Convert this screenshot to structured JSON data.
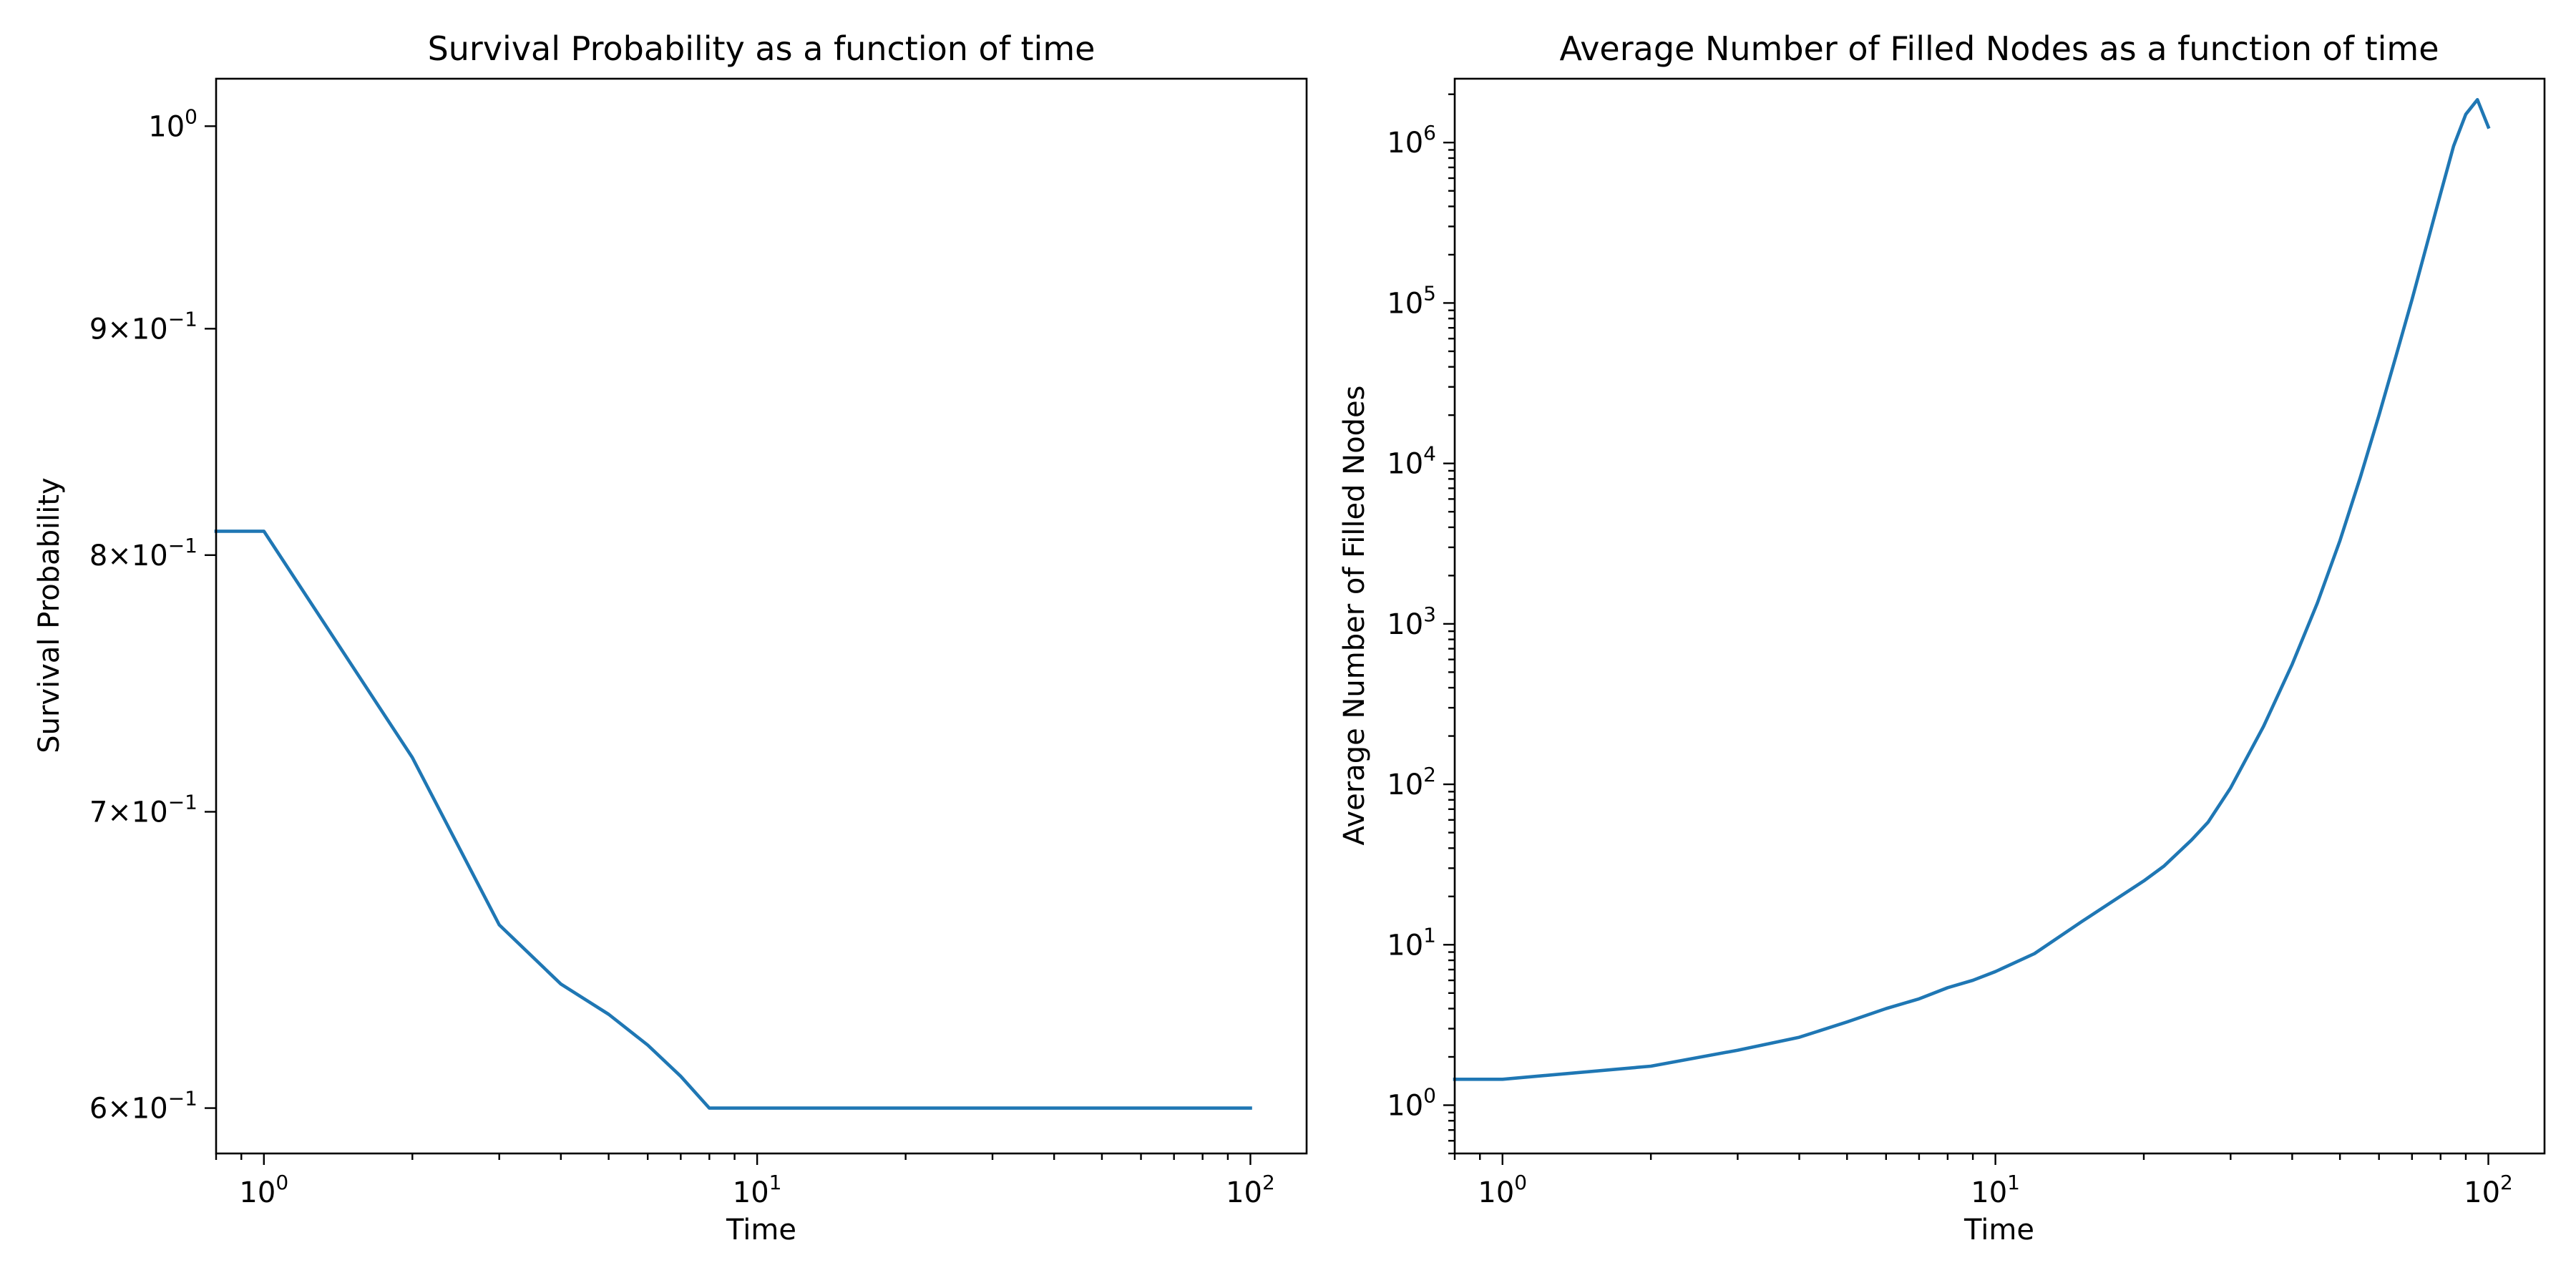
{
  "chart_data": [
    {
      "type": "line",
      "title": "Survival Probability as a function of time",
      "xlabel": "Time",
      "ylabel": "Survival Probability",
      "xscale": "log",
      "yscale": "log",
      "xlim": [
        0.8,
        130
      ],
      "ylim": [
        0.586,
        1.025
      ],
      "grid": false,
      "legend": "none",
      "x_major_ticks": [
        {
          "value": 1,
          "base": "10",
          "exp": "0"
        },
        {
          "value": 10,
          "base": "10",
          "exp": "1"
        },
        {
          "value": 100,
          "base": "10",
          "exp": "2"
        }
      ],
      "y_major_ticks": [
        {
          "value": 1.0,
          "coef": "",
          "base": "10",
          "exp": "0"
        },
        {
          "value": 0.9,
          "coef": "9",
          "base": "10",
          "exp": "−1"
        },
        {
          "value": 0.8,
          "coef": "8",
          "base": "10",
          "exp": "−1"
        },
        {
          "value": 0.7,
          "coef": "7",
          "base": "10",
          "exp": "−1"
        },
        {
          "value": 0.6,
          "coef": "6",
          "base": "10",
          "exp": "−1"
        }
      ],
      "series": [
        {
          "color": "#1f77b4",
          "x": [
            0.8,
            1,
            2,
            3,
            4,
            5,
            6,
            7,
            8,
            10,
            20,
            30,
            40,
            50,
            60,
            70,
            80,
            90,
            100
          ],
          "y": [
            0.81,
            0.81,
            0.72,
            0.66,
            0.64,
            0.63,
            0.62,
            0.61,
            0.6,
            0.6,
            0.6,
            0.6,
            0.6,
            0.6,
            0.6,
            0.6,
            0.6,
            0.6,
            0.6
          ]
        }
      ]
    },
    {
      "type": "line",
      "title": "Average Number of Filled Nodes as a function of time",
      "xlabel": "Time",
      "ylabel": "Average Number of Filled Nodes",
      "xscale": "log",
      "yscale": "log",
      "xlim": [
        0.8,
        130
      ],
      "ylim": [
        0.5,
        2500000
      ],
      "grid": false,
      "legend": "none",
      "x_major_ticks": [
        {
          "value": 1,
          "base": "10",
          "exp": "0"
        },
        {
          "value": 10,
          "base": "10",
          "exp": "1"
        },
        {
          "value": 100,
          "base": "10",
          "exp": "2"
        }
      ],
      "y_major_ticks": [
        {
          "value": 1,
          "base": "10",
          "exp": "0"
        },
        {
          "value": 10,
          "base": "10",
          "exp": "1"
        },
        {
          "value": 100,
          "base": "10",
          "exp": "2"
        },
        {
          "value": 1000,
          "base": "10",
          "exp": "3"
        },
        {
          "value": 10000,
          "base": "10",
          "exp": "4"
        },
        {
          "value": 100000,
          "base": "10",
          "exp": "5"
        },
        {
          "value": 1000000,
          "base": "10",
          "exp": "6"
        }
      ],
      "series": [
        {
          "color": "#1f77b4",
          "x": [
            0.8,
            1,
            2,
            3,
            4,
            5,
            6,
            7,
            8,
            9,
            10,
            12,
            15,
            20,
            22,
            25,
            27,
            30,
            35,
            40,
            45,
            50,
            55,
            60,
            65,
            70,
            75,
            80,
            85,
            90,
            95,
            100
          ],
          "y": [
            1.45,
            1.45,
            1.75,
            2.2,
            2.65,
            3.3,
            4.0,
            4.6,
            5.4,
            6.0,
            6.8,
            8.8,
            14,
            25,
            31,
            45,
            58,
            95,
            230,
            560,
            1350,
            3300,
            8200,
            20000,
            47000,
            105000,
            230000,
            480000,
            950000,
            1500000,
            1850000,
            1250000
          ]
        }
      ]
    }
  ]
}
